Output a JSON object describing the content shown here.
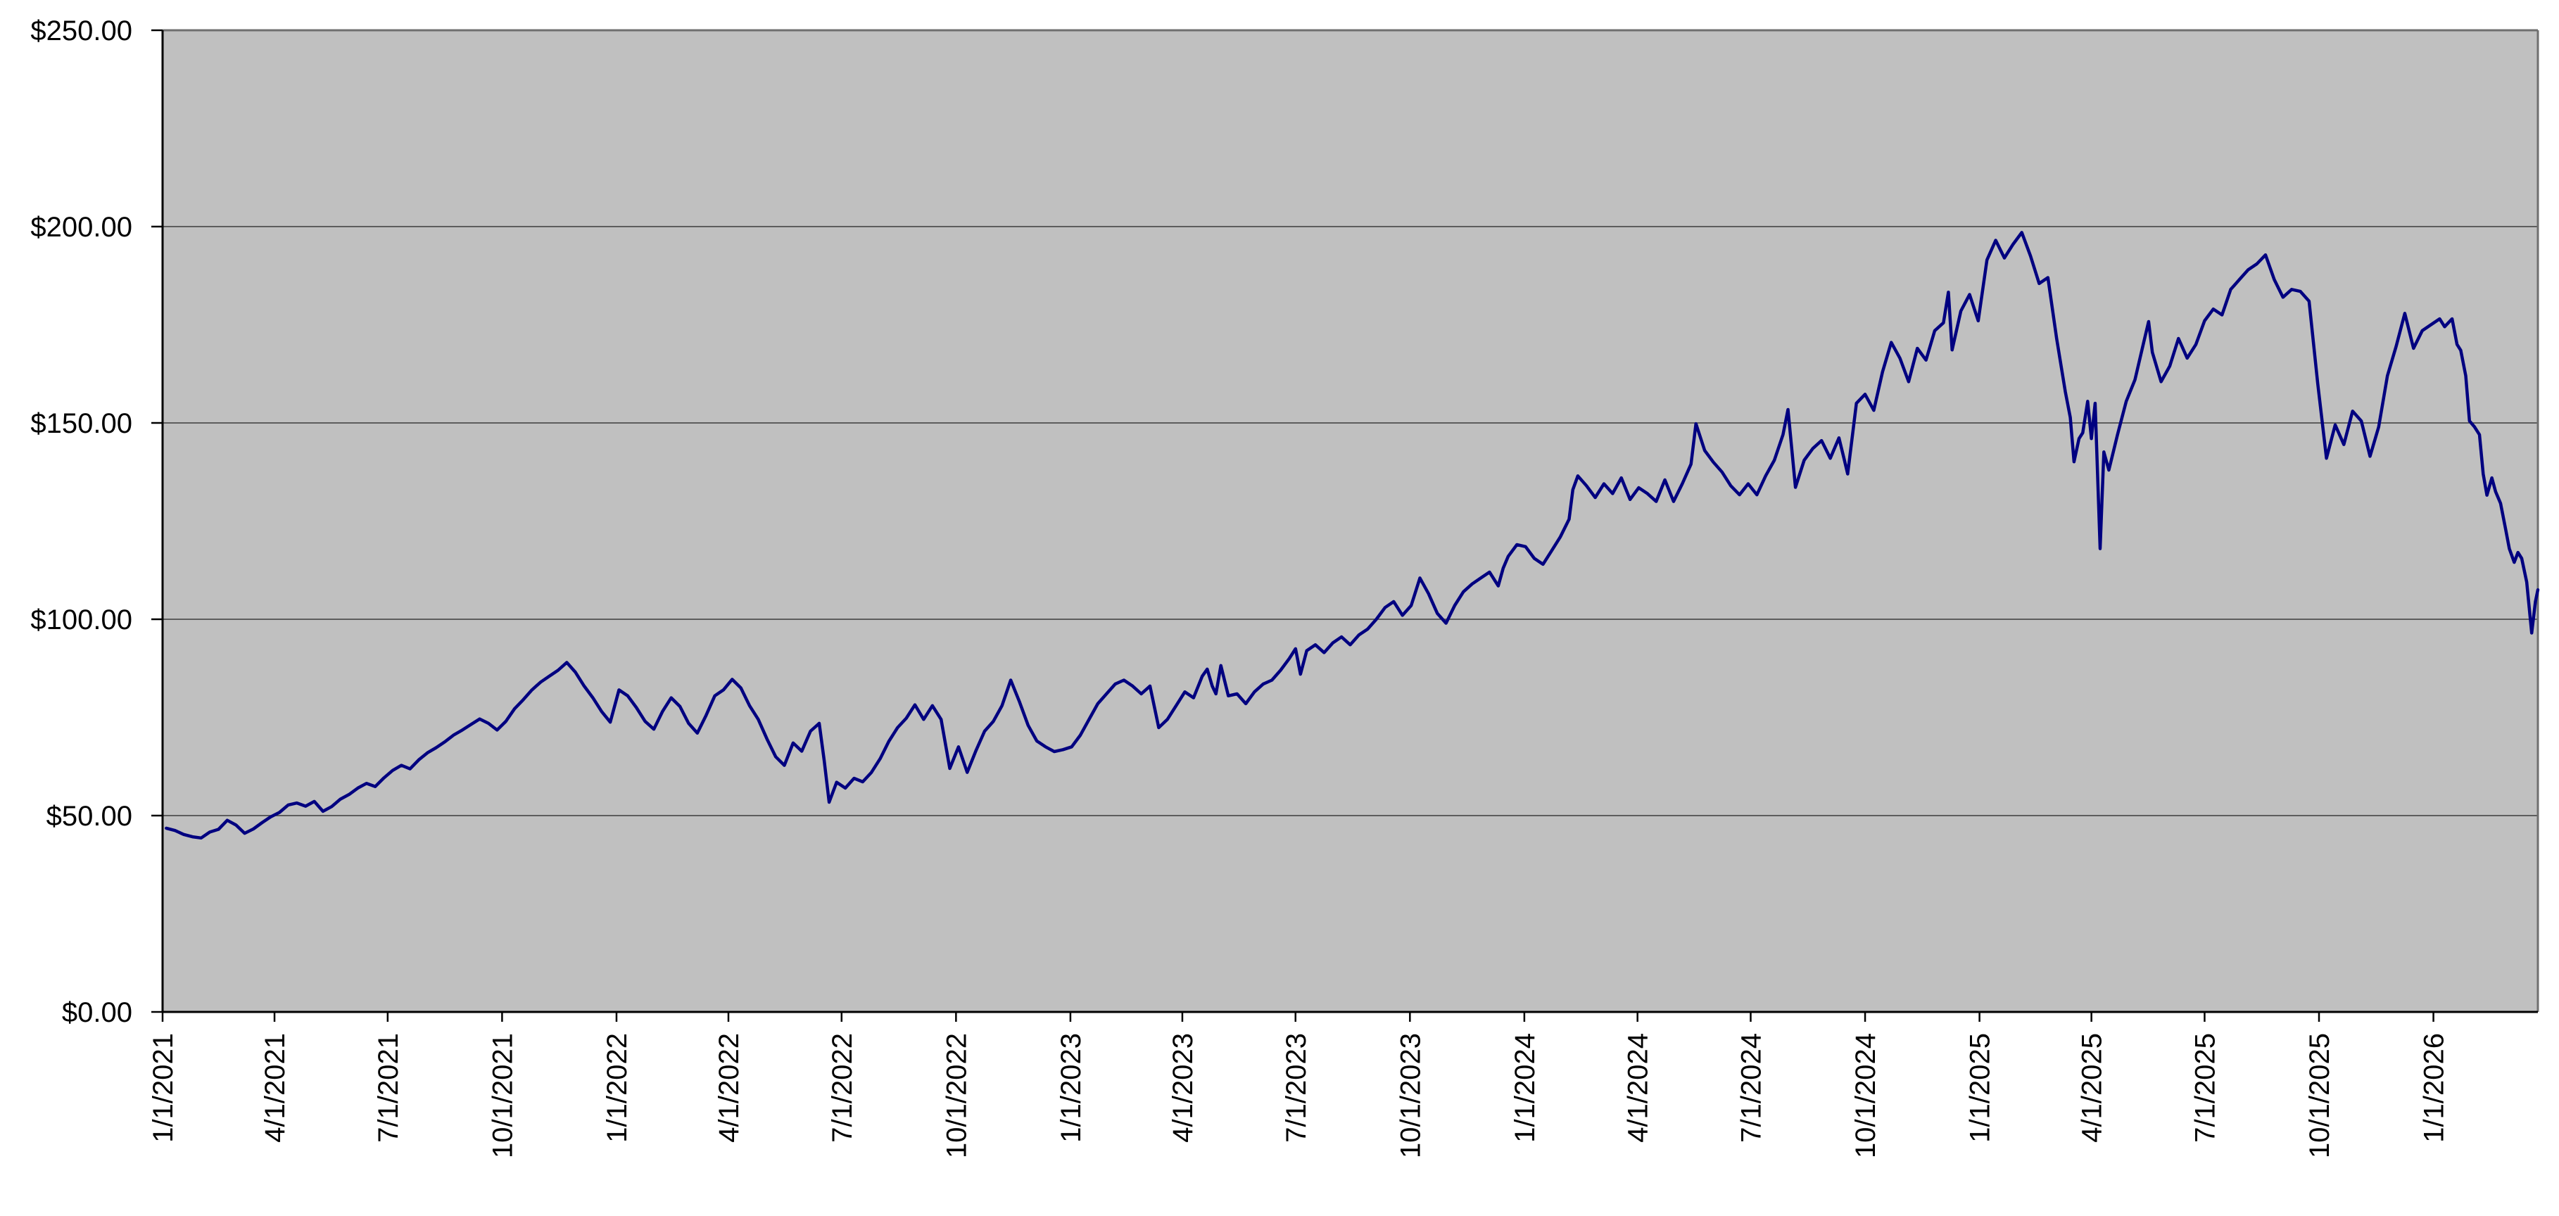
{
  "chart_data": {
    "type": "line",
    "title": "",
    "legend": "none",
    "grid": "horizontal",
    "colors": {
      "line": "#000080",
      "plot_background": "#c0c0c0",
      "gridline": "#3c3c3c",
      "axis": "#000000",
      "plot_border": "#6f6f6f",
      "page_background": "#ffffff",
      "label": "#000000"
    },
    "y_axis": {
      "range": [
        0,
        250
      ],
      "tick_values": [
        0,
        50,
        100,
        150,
        200,
        250
      ],
      "tick_labels": [
        "$0.00",
        "$50.00",
        "$100.00",
        "$150.00",
        "$200.00",
        "$250.00"
      ]
    },
    "x_axis": {
      "domain_days": [
        0,
        1910
      ],
      "tick_days": [
        0,
        90,
        181,
        273,
        365,
        455,
        546,
        638,
        730,
        820,
        911,
        1003,
        1095,
        1186,
        1277,
        1369,
        1461,
        1551,
        1642,
        1734,
        1826
      ],
      "tick_labels": [
        "1/1/2021",
        "4/1/2021",
        "7/1/2021",
        "10/1/2021",
        "1/1/2022",
        "4/1/2022",
        "7/1/2022",
        "10/1/2022",
        "1/1/2023",
        "4/1/2023",
        "7/1/2023",
        "10/1/2023",
        "1/1/2024",
        "4/1/2024",
        "7/1/2024",
        "10/1/2024",
        "1/1/2025",
        "4/1/2025",
        "7/1/2025",
        "10/1/2025",
        "1/1/2026"
      ]
    },
    "series": [
      {
        "points": [
          [
            3,
            46.8
          ],
          [
            10,
            46.2
          ],
          [
            17,
            45.2
          ],
          [
            24,
            44.6
          ],
          [
            31,
            44.3
          ],
          [
            38,
            45.8
          ],
          [
            45,
            46.5
          ],
          [
            52,
            48.8
          ],
          [
            59,
            47.6
          ],
          [
            66,
            45.5
          ],
          [
            73,
            46.6
          ],
          [
            80,
            48.2
          ],
          [
            87,
            49.7
          ],
          [
            94,
            50.8
          ],
          [
            101,
            52.7
          ],
          [
            108,
            53.2
          ],
          [
            115,
            52.4
          ],
          [
            122,
            53.6
          ],
          [
            129,
            51.1
          ],
          [
            136,
            52.3
          ],
          [
            143,
            54.2
          ],
          [
            150,
            55.4
          ],
          [
            157,
            57.0
          ],
          [
            164,
            58.2
          ],
          [
            171,
            57.4
          ],
          [
            178,
            59.6
          ],
          [
            185,
            61.5
          ],
          [
            192,
            62.8
          ],
          [
            199,
            61.9
          ],
          [
            206,
            64.2
          ],
          [
            213,
            66.0
          ],
          [
            220,
            67.3
          ],
          [
            227,
            68.8
          ],
          [
            234,
            70.5
          ],
          [
            241,
            71.8
          ],
          [
            248,
            73.2
          ],
          [
            255,
            74.6
          ],
          [
            262,
            73.5
          ],
          [
            269,
            71.8
          ],
          [
            276,
            74.0
          ],
          [
            283,
            77.2
          ],
          [
            290,
            79.5
          ],
          [
            297,
            82.0
          ],
          [
            304,
            84.0
          ],
          [
            311,
            85.5
          ],
          [
            318,
            87.0
          ],
          [
            325,
            89.0
          ],
          [
            332,
            86.5
          ],
          [
            339,
            83.0
          ],
          [
            346,
            80.0
          ],
          [
            353,
            76.5
          ],
          [
            360,
            73.8
          ],
          [
            367,
            82.0
          ],
          [
            374,
            80.5
          ],
          [
            381,
            77.5
          ],
          [
            388,
            74.0
          ],
          [
            395,
            72.0
          ],
          [
            402,
            76.5
          ],
          [
            409,
            80.0
          ],
          [
            416,
            77.8
          ],
          [
            423,
            73.5
          ],
          [
            430,
            71.0
          ],
          [
            437,
            75.5
          ],
          [
            444,
            80.5
          ],
          [
            451,
            82.0
          ],
          [
            458,
            84.7
          ],
          [
            465,
            82.5
          ],
          [
            472,
            78.0
          ],
          [
            479,
            74.5
          ],
          [
            486,
            69.5
          ],
          [
            493,
            65.0
          ],
          [
            500,
            62.8
          ],
          [
            507,
            68.5
          ],
          [
            514,
            66.4
          ],
          [
            521,
            71.5
          ],
          [
            528,
            73.5
          ],
          [
            532,
            64.0
          ],
          [
            536,
            53.4
          ],
          [
            542,
            58.5
          ],
          [
            549,
            57.0
          ],
          [
            556,
            59.5
          ],
          [
            563,
            58.6
          ],
          [
            570,
            61.0
          ],
          [
            577,
            64.5
          ],
          [
            584,
            68.9
          ],
          [
            591,
            72.4
          ],
          [
            598,
            74.8
          ],
          [
            605,
            78.2
          ],
          [
            612,
            74.5
          ],
          [
            619,
            78.0
          ],
          [
            626,
            74.5
          ],
          [
            633,
            62.0
          ],
          [
            640,
            67.5
          ],
          [
            647,
            61.0
          ],
          [
            654,
            66.5
          ],
          [
            661,
            71.5
          ],
          [
            668,
            74.0
          ],
          [
            675,
            78.0
          ],
          [
            682,
            84.5
          ],
          [
            689,
            79.0
          ],
          [
            696,
            73.0
          ],
          [
            703,
            69.0
          ],
          [
            710,
            67.5
          ],
          [
            717,
            66.3
          ],
          [
            724,
            66.8
          ],
          [
            731,
            67.5
          ],
          [
            738,
            70.5
          ],
          [
            745,
            74.5
          ],
          [
            752,
            78.5
          ],
          [
            759,
            81.0
          ],
          [
            766,
            83.5
          ],
          [
            773,
            84.5
          ],
          [
            780,
            83.0
          ],
          [
            787,
            81.0
          ],
          [
            794,
            83.0
          ],
          [
            801,
            72.4
          ],
          [
            808,
            74.5
          ],
          [
            815,
            78.0
          ],
          [
            822,
            81.5
          ],
          [
            829,
            80.0
          ],
          [
            836,
            85.5
          ],
          [
            840,
            87.3
          ],
          [
            844,
            83.0
          ],
          [
            847,
            81.0
          ],
          [
            851,
            88.2
          ],
          [
            857,
            80.5
          ],
          [
            864,
            81.0
          ],
          [
            871,
            78.5
          ],
          [
            878,
            81.5
          ],
          [
            885,
            83.5
          ],
          [
            892,
            84.5
          ],
          [
            899,
            87.0
          ],
          [
            906,
            90.0
          ],
          [
            911,
            92.5
          ],
          [
            915,
            86.0
          ],
          [
            920,
            92.0
          ],
          [
            927,
            93.5
          ],
          [
            934,
            91.5
          ],
          [
            941,
            94.0
          ],
          [
            948,
            95.5
          ],
          [
            955,
            93.5
          ],
          [
            962,
            96.0
          ],
          [
            969,
            97.5
          ],
          [
            976,
            100.0
          ],
          [
            983,
            103.0
          ],
          [
            990,
            104.5
          ],
          [
            997,
            101.0
          ],
          [
            1004,
            103.5
          ],
          [
            1011,
            110.5
          ],
          [
            1018,
            106.5
          ],
          [
            1025,
            101.5
          ],
          [
            1032,
            99.0
          ],
          [
            1039,
            103.5
          ],
          [
            1046,
            107.0
          ],
          [
            1053,
            109.0
          ],
          [
            1060,
            110.5
          ],
          [
            1067,
            112.0
          ],
          [
            1074,
            108.5
          ],
          [
            1078,
            113.0
          ],
          [
            1082,
            116.0
          ],
          [
            1089,
            119.0
          ],
          [
            1096,
            118.5
          ],
          [
            1103,
            115.5
          ],
          [
            1110,
            114.0
          ],
          [
            1117,
            117.5
          ],
          [
            1124,
            121.0
          ],
          [
            1131,
            125.5
          ],
          [
            1134,
            133.0
          ],
          [
            1138,
            136.5
          ],
          [
            1145,
            134.0
          ],
          [
            1152,
            131.0
          ],
          [
            1159,
            134.5
          ],
          [
            1166,
            132.0
          ],
          [
            1173,
            136.0
          ],
          [
            1180,
            130.5
          ],
          [
            1187,
            133.5
          ],
          [
            1194,
            132.0
          ],
          [
            1201,
            130.0
          ],
          [
            1208,
            135.5
          ],
          [
            1215,
            130.0
          ],
          [
            1222,
            134.5
          ],
          [
            1229,
            139.5
          ],
          [
            1233,
            149.8
          ],
          [
            1240,
            143.0
          ],
          [
            1247,
            140.0
          ],
          [
            1254,
            137.5
          ],
          [
            1261,
            134.0
          ],
          [
            1268,
            131.7
          ],
          [
            1275,
            134.5
          ],
          [
            1282,
            131.7
          ],
          [
            1289,
            136.5
          ],
          [
            1296,
            140.5
          ],
          [
            1303,
            147.0
          ],
          [
            1307,
            153.4
          ],
          [
            1313,
            133.6
          ],
          [
            1320,
            140.5
          ],
          [
            1327,
            143.5
          ],
          [
            1334,
            145.5
          ],
          [
            1341,
            141.0
          ],
          [
            1348,
            146.2
          ],
          [
            1352,
            141.0
          ],
          [
            1355,
            137.0
          ],
          [
            1362,
            155.0
          ],
          [
            1369,
            157.3
          ],
          [
            1376,
            153.2
          ],
          [
            1383,
            163.0
          ],
          [
            1390,
            170.5
          ],
          [
            1397,
            166.5
          ],
          [
            1404,
            160.5
          ],
          [
            1411,
            169.0
          ],
          [
            1418,
            166.0
          ],
          [
            1425,
            173.5
          ],
          [
            1432,
            175.5
          ],
          [
            1436,
            183.3
          ],
          [
            1439,
            168.6
          ],
          [
            1446,
            178.5
          ],
          [
            1453,
            182.7
          ],
          [
            1460,
            176.0
          ],
          [
            1467,
            191.5
          ],
          [
            1474,
            196.5
          ],
          [
            1481,
            192.0
          ],
          [
            1488,
            195.5
          ],
          [
            1495,
            198.5
          ],
          [
            1502,
            192.5
          ],
          [
            1509,
            185.5
          ],
          [
            1516,
            187.0
          ],
          [
            1523,
            171.5
          ],
          [
            1530,
            158.0
          ],
          [
            1534,
            151.4
          ],
          [
            1537,
            140.1
          ],
          [
            1541,
            146.0
          ],
          [
            1544,
            147.5
          ],
          [
            1548,
            155.5
          ],
          [
            1551,
            146.0
          ],
          [
            1554,
            155.0
          ],
          [
            1558,
            118.0
          ],
          [
            1561,
            142.6
          ],
          [
            1565,
            138.0
          ],
          [
            1572,
            147.0
          ],
          [
            1579,
            155.5
          ],
          [
            1586,
            161.0
          ],
          [
            1593,
            170.5
          ],
          [
            1597,
            175.8
          ],
          [
            1600,
            168.0
          ],
          [
            1607,
            160.5
          ],
          [
            1614,
            164.5
          ],
          [
            1621,
            171.5
          ],
          [
            1628,
            166.5
          ],
          [
            1635,
            170.0
          ],
          [
            1642,
            176.0
          ],
          [
            1649,
            179.0
          ],
          [
            1656,
            177.5
          ],
          [
            1663,
            184.0
          ],
          [
            1670,
            186.5
          ],
          [
            1677,
            189.0
          ],
          [
            1684,
            190.5
          ],
          [
            1691,
            192.8
          ],
          [
            1698,
            186.5
          ],
          [
            1705,
            182.0
          ],
          [
            1712,
            184.0
          ],
          [
            1719,
            183.5
          ],
          [
            1726,
            181.0
          ],
          [
            1733,
            160.0
          ],
          [
            1740,
            141.0
          ],
          [
            1747,
            149.5
          ],
          [
            1754,
            144.5
          ],
          [
            1761,
            153.0
          ],
          [
            1768,
            150.5
          ],
          [
            1775,
            141.5
          ],
          [
            1782,
            149.0
          ],
          [
            1789,
            162.0
          ],
          [
            1796,
            169.5
          ],
          [
            1803,
            177.9
          ],
          [
            1810,
            169.0
          ],
          [
            1817,
            173.5
          ],
          [
            1824,
            175.0
          ],
          [
            1831,
            176.5
          ],
          [
            1835,
            174.5
          ],
          [
            1838,
            175.5
          ],
          [
            1841,
            176.5
          ],
          [
            1845,
            170.0
          ],
          [
            1848,
            168.5
          ],
          [
            1852,
            162.0
          ],
          [
            1855,
            150.5
          ],
          [
            1859,
            149.0
          ],
          [
            1863,
            147.0
          ],
          [
            1866,
            137.0
          ],
          [
            1869,
            131.6
          ],
          [
            1873,
            136.0
          ],
          [
            1876,
            132.5
          ],
          [
            1880,
            129.5
          ],
          [
            1884,
            123.0
          ],
          [
            1887,
            118.0
          ],
          [
            1891,
            114.5
          ],
          [
            1894,
            117.0
          ],
          [
            1897,
            115.5
          ],
          [
            1901,
            109.5
          ],
          [
            1905,
            96.5
          ],
          [
            1908,
            104.5
          ],
          [
            1910,
            107.5
          ]
        ]
      }
    ]
  }
}
